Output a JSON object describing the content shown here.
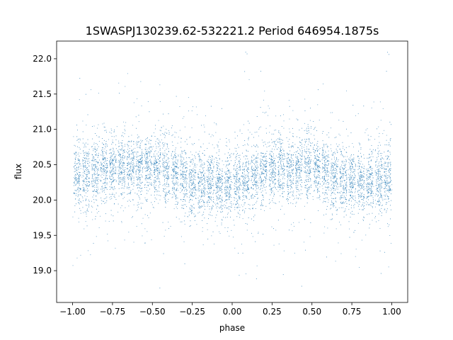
{
  "chart_data": {
    "type": "scatter",
    "title": "1SWASPJ130239.62-532221.2 Period 646954.1875s",
    "xlabel": "phase",
    "ylabel": "flux",
    "xlim": [
      -1.1,
      1.1
    ],
    "ylim": [
      18.55,
      22.25
    ],
    "xticks": [
      -1.0,
      -0.75,
      -0.5,
      -0.25,
      0.0,
      0.25,
      0.5,
      0.75,
      1.0
    ],
    "xtick_labels": [
      "−1.00",
      "−0.75",
      "−0.50",
      "−0.25",
      "0.00",
      "0.25",
      "0.50",
      "0.75",
      "1.00"
    ],
    "yticks": [
      19.0,
      19.5,
      20.0,
      20.5,
      21.0,
      21.5,
      22.0
    ],
    "ytick_labels": [
      "19.0",
      "19.5",
      "20.0",
      "20.5",
      "21.0",
      "21.5",
      "22.0"
    ],
    "grid": false,
    "legend": "none",
    "marker_color": "#1f77b4",
    "series": [
      {
        "x_range": [
          -1.0,
          1.0
        ],
        "baseline_flux_by_phase": [
          {
            "x": -1.0,
            "y": 20.33
          },
          {
            "x": -0.75,
            "y": 20.45
          },
          {
            "x": -0.5,
            "y": 20.48
          },
          {
            "x": -0.25,
            "y": 20.25
          },
          {
            "x": 0.0,
            "y": 20.22
          },
          {
            "x": 0.25,
            "y": 20.45
          },
          {
            "x": 0.5,
            "y": 20.47
          },
          {
            "x": 0.75,
            "y": 20.25
          },
          {
            "x": 1.0,
            "y": 20.3
          }
        ],
        "core_band_flux": [
          19.85,
          20.95
        ],
        "outlier_flux_range": [
          18.7,
          22.1
        ]
      }
    ]
  }
}
